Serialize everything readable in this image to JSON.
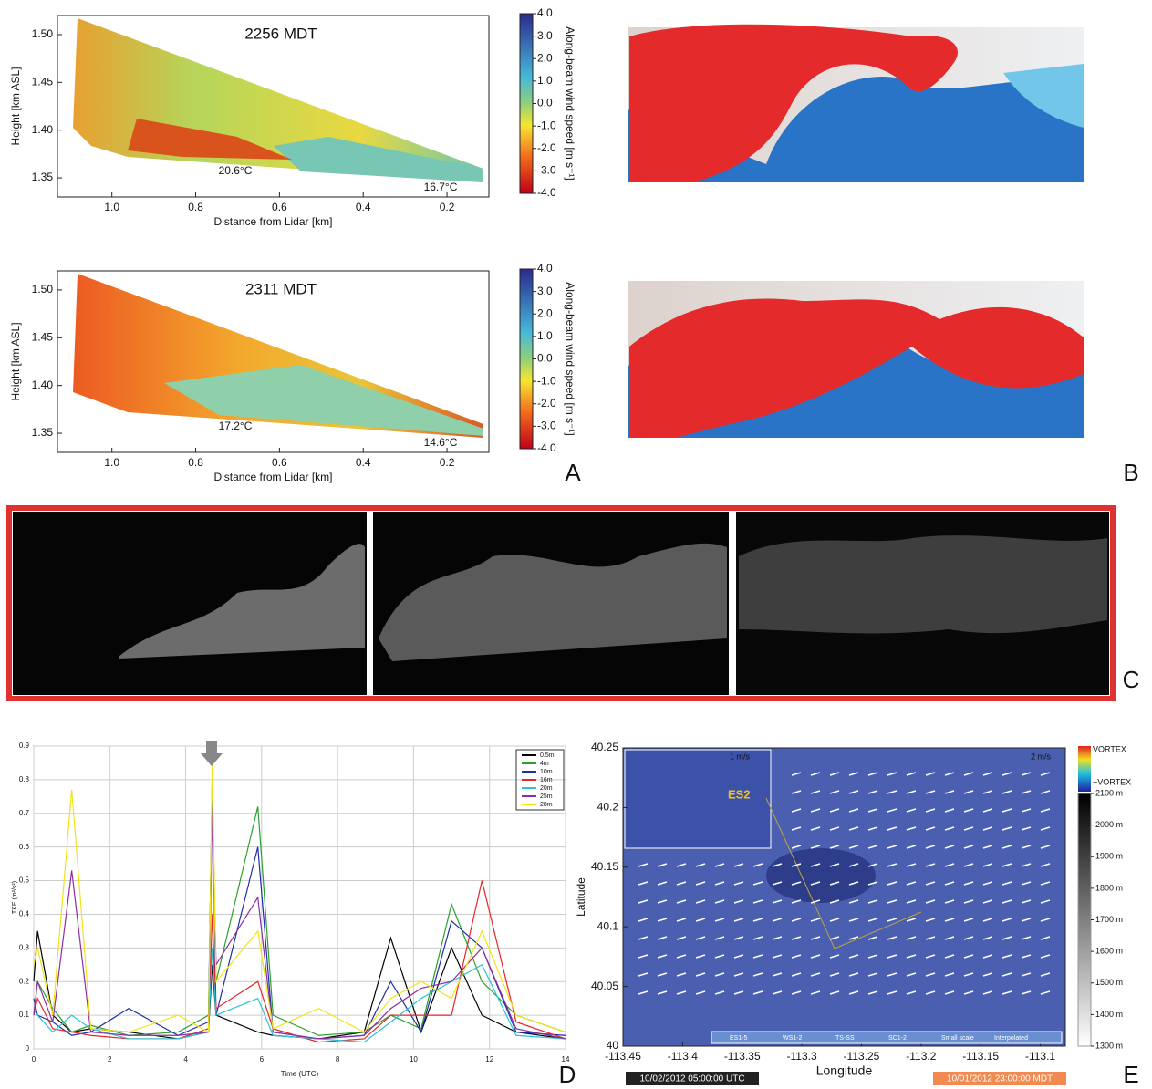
{
  "chart_data": [
    {
      "type": "heatmap",
      "title": "2256 MDT",
      "xlabel": "Distance from Lidar [km]",
      "ylabel": "Height [km ASL]",
      "xlim": [
        1.13,
        0.1
      ],
      "ylim": [
        1.33,
        1.52
      ],
      "xticks": [
        {
          "value": 1,
          "label": "1.0"
        },
        0.8,
        0.6,
        0.4,
        0.2
      ],
      "yticks": [
        1.35,
        {
          "value": 1.4,
          "label": "1.40"
        },
        1.45,
        {
          "value": 1.5,
          "label": "1.50"
        }
      ],
      "annotations": [
        "20.6°C",
        "16.7°C"
      ],
      "colorbar": {
        "label": "Along-beam wind speed [m s⁻¹]",
        "lim": [
          -4,
          4
        ],
        "ticks": [
          {
            "value": 4,
            "label": "4.0"
          },
          {
            "value": 3,
            "label": "3.0"
          },
          {
            "value": 2,
            "label": "2.0"
          },
          {
            "value": 1,
            "label": "1.0"
          },
          {
            "value": 0,
            "label": "0.0"
          },
          {
            "value": -1,
            "label": "-1.0"
          },
          {
            "value": -2,
            "label": "-2.0"
          },
          {
            "value": -3,
            "label": "-3.0"
          },
          {
            "value": -4,
            "label": "-4.0"
          }
        ]
      }
    },
    {
      "type": "heatmap",
      "title": "2311 MDT",
      "xlabel": "Distance from Lidar [km]",
      "ylabel": "Height [km ASL]",
      "xlim": [
        1.13,
        0.1
      ],
      "ylim": [
        1.33,
        1.52
      ],
      "xticks": [
        {
          "value": 1,
          "label": "1.0"
        },
        0.8,
        0.6,
        0.4,
        0.2
      ],
      "yticks": [
        1.35,
        {
          "value": 1.4,
          "label": "1.40"
        },
        1.45,
        {
          "value": 1.5,
          "label": "1.50"
        }
      ],
      "annotations": [
        "17.2°C",
        "14.6°C"
      ],
      "colorbar": {
        "label": "Along-beam wind speed [m s⁻¹]",
        "lim": [
          -4,
          4
        ],
        "ticks": [
          {
            "value": 4,
            "label": "4.0"
          },
          {
            "value": 3,
            "label": "3.0"
          },
          {
            "value": 2,
            "label": "2.0"
          },
          {
            "value": 1,
            "label": "1.0"
          },
          {
            "value": 0,
            "label": "0.0"
          },
          {
            "value": -1,
            "label": "-1.0"
          },
          {
            "value": -2,
            "label": "-2.0"
          },
          {
            "value": -3,
            "label": "-3.0"
          },
          {
            "value": -4,
            "label": "-4.0"
          }
        ]
      }
    },
    {
      "type": "line",
      "xlabel": "Time (UTC)",
      "ylabel": "TKE (m²/s²)",
      "grid": true,
      "xlim": [
        0,
        14
      ],
      "ylim": [
        0,
        0.9
      ],
      "xticks": [
        0,
        2,
        4,
        6,
        8,
        10,
        12,
        14
      ],
      "yticks": [
        0,
        0.1,
        0.2,
        0.3,
        0.4,
        0.5,
        0.6,
        0.7,
        0.8,
        0.9
      ],
      "x": [
        0,
        0.1,
        0.5,
        1,
        1.5,
        2.5,
        3.8,
        4.6,
        4.7,
        4.8,
        5.9,
        6.3,
        7.5,
        8.7,
        9.4,
        10.2,
        11,
        11.8,
        12.7,
        14
      ],
      "series": [
        {
          "name": "0.5m",
          "color": "#000000",
          "values": [
            0.2,
            0.35,
            0.1,
            0.05,
            0.06,
            0.05,
            0.03,
            0.05,
            0.25,
            0.1,
            0.05,
            0.04,
            0.03,
            0.05,
            0.33,
            0.05,
            0.3,
            0.1,
            0.05,
            0.03
          ]
        },
        {
          "name": "4m",
          "color": "#2ca02c",
          "values": [
            0.1,
            0.2,
            0.12,
            0.05,
            0.07,
            0.04,
            0.05,
            0.1,
            0.8,
            0.2,
            0.72,
            0.1,
            0.04,
            0.05,
            0.1,
            0.06,
            0.43,
            0.2,
            0.1,
            0.05
          ]
        },
        {
          "name": "10m",
          "color": "#1f2fa8",
          "values": [
            0.15,
            0.1,
            0.08,
            0.04,
            0.05,
            0.12,
            0.04,
            0.08,
            0.82,
            0.1,
            0.6,
            0.05,
            0.03,
            0.04,
            0.2,
            0.05,
            0.38,
            0.3,
            0.05,
            0.04
          ]
        },
        {
          "name": "16m",
          "color": "#e8252a",
          "values": [
            0.1,
            0.15,
            0.06,
            0.05,
            0.04,
            0.03,
            0.03,
            0.06,
            0.4,
            0.12,
            0.2,
            0.06,
            0.02,
            0.03,
            0.1,
            0.1,
            0.1,
            0.5,
            0.08,
            0.03
          ]
        },
        {
          "name": "20m",
          "color": "#27c3d8",
          "values": [
            0.12,
            0.1,
            0.05,
            0.1,
            0.06,
            0.03,
            0.03,
            0.05,
            0.3,
            0.1,
            0.15,
            0.04,
            0.03,
            0.02,
            0.08,
            0.15,
            0.2,
            0.25,
            0.04,
            0.03
          ]
        },
        {
          "name": "25m",
          "color": "#8e2fa0",
          "values": [
            0.1,
            0.2,
            0.08,
            0.53,
            0.05,
            0.04,
            0.04,
            0.05,
            0.7,
            0.25,
            0.45,
            0.05,
            0.03,
            0.04,
            0.12,
            0.18,
            0.2,
            0.3,
            0.06,
            0.03
          ]
        },
        {
          "name": "28m",
          "color": "#f2e318",
          "values": [
            0.25,
            0.3,
            0.1,
            0.77,
            0.06,
            0.05,
            0.1,
            0.05,
            0.85,
            0.2,
            0.35,
            0.06,
            0.12,
            0.05,
            0.15,
            0.2,
            0.15,
            0.35,
            0.1,
            0.05
          ]
        }
      ]
    },
    {
      "type": "vector-map",
      "xlabel": "Longitude",
      "ylabel": "Latitude",
      "xlim": [
        -113.45,
        -113.079
      ],
      "ylim": [
        40,
        40.25
      ],
      "xticks": [
        -113.45,
        -113.4,
        -113.35,
        -113.3,
        -113.25,
        -113.2,
        -113.15,
        -113.1
      ],
      "yticks": [
        40,
        40.05,
        40.1,
        40.15,
        40.2,
        40.25
      ],
      "scale_labels": [
        "1 m/s",
        "2 m/s"
      ],
      "inset_label": "ES2",
      "legend": [
        "ES1-5",
        "WS1-2",
        "TS-SS",
        "SC1-2",
        "Small scale",
        "Interpolated"
      ],
      "timestamps": [
        "10/02/2012 05:00:00 UTC",
        "10/01/2012 23:00:00 MDT"
      ],
      "colorbar": {
        "labels": [
          "VORTEX",
          "−VORTEX"
        ],
        "lim": [
          1300,
          2100
        ],
        "ticks": [
          {
            "value": 2100,
            "label": "2100 m"
          },
          {
            "value": 2000,
            "label": "2000 m"
          },
          {
            "value": 1900,
            "label": "1900 m"
          },
          {
            "value": 1800,
            "label": "1800 m"
          },
          {
            "value": 1700,
            "label": "1700 m"
          },
          {
            "value": 1600,
            "label": "1600 m"
          },
          {
            "value": 1500,
            "label": "1500 m"
          },
          {
            "value": 1400,
            "label": "1400 m"
          },
          {
            "value": 1300,
            "label": "1300 m"
          }
        ]
      }
    }
  ],
  "panel_labels": [
    "A",
    "B",
    "C",
    "D",
    "E"
  ]
}
